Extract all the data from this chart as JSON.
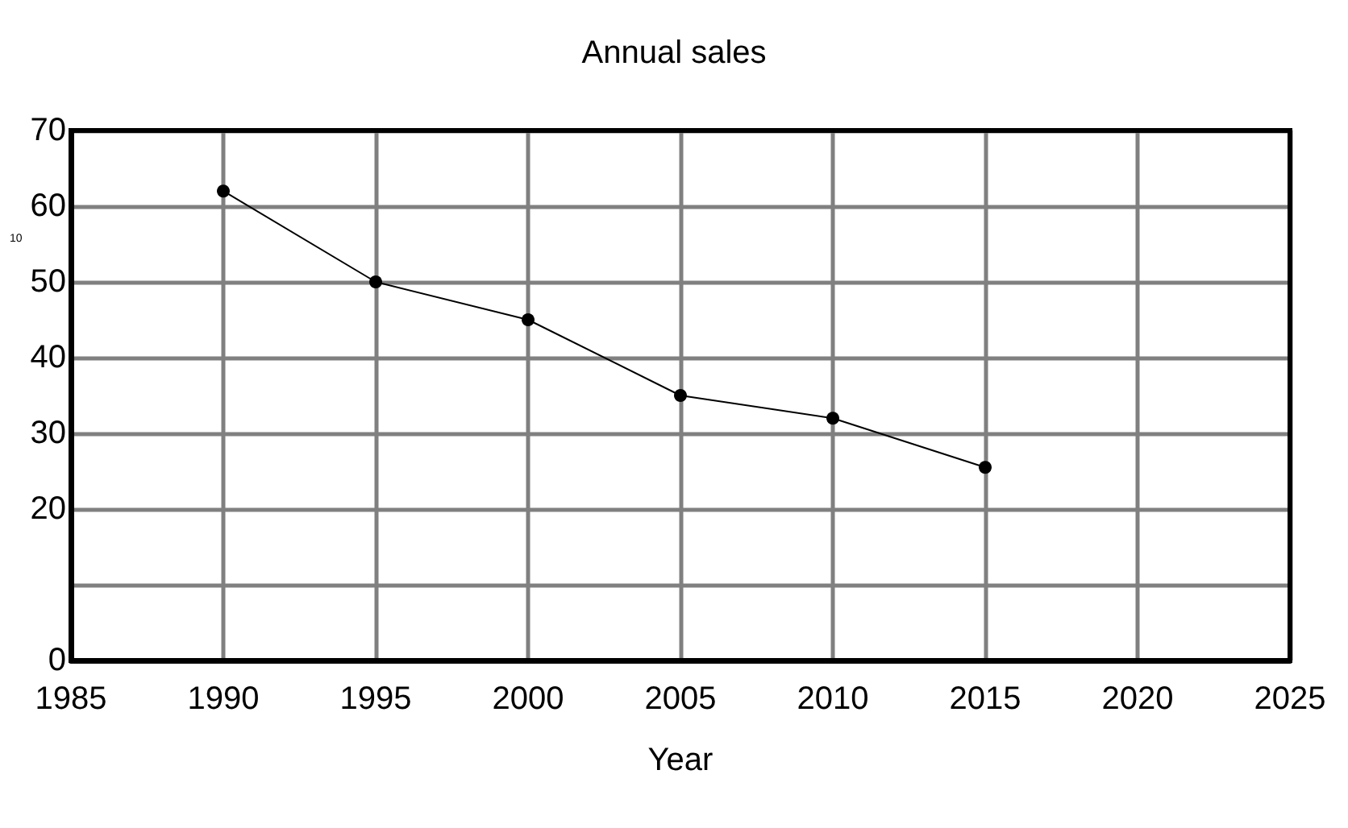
{
  "chart_data": {
    "type": "line",
    "title": "Annual sales",
    "xlabel": "Year",
    "x": [
      1990,
      1995,
      2000,
      2005,
      2010,
      2015
    ],
    "series": [
      {
        "color": "#000000",
        "values": [
          62,
          50,
          45,
          35,
          32,
          25.5
        ]
      }
    ],
    "xlim": [
      1985,
      2025
    ],
    "xticks": [
      1985,
      1990,
      1995,
      2000,
      2005,
      2010,
      2015,
      2020,
      2025
    ],
    "ylim": [
      0,
      70
    ],
    "yticks": [
      0,
      {
        "value": 10,
        "label": null
      },
      20,
      30,
      40,
      50,
      60,
      70
    ],
    "annotations": [
      "10"
    ],
    "grid": true,
    "marker": "circle",
    "line_style": "solid",
    "legend": false
  }
}
